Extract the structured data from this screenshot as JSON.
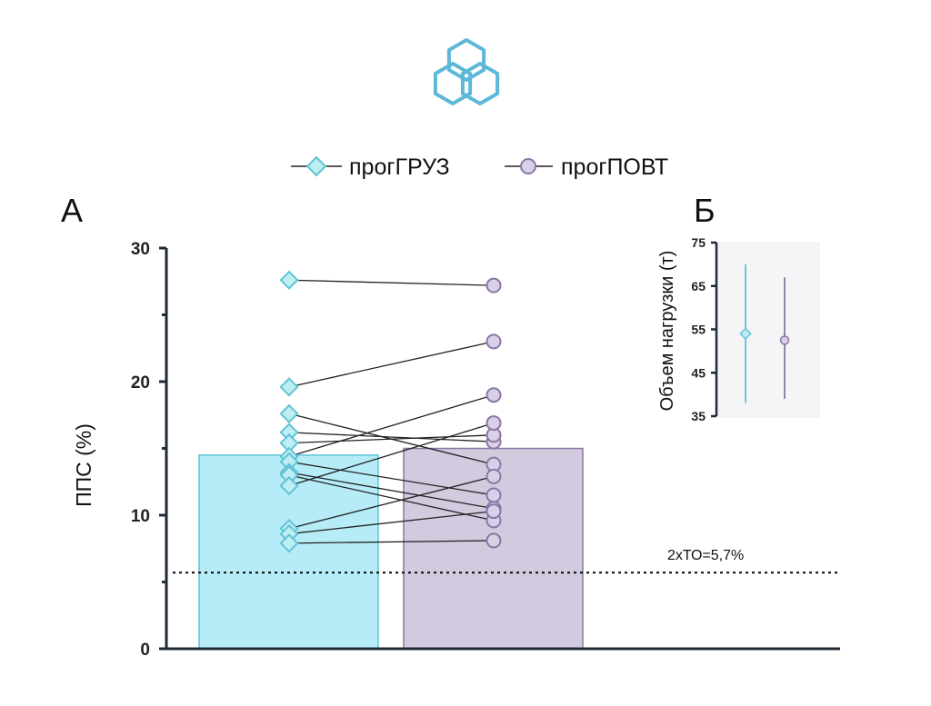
{
  "colors": {
    "load": "#62c3d6",
    "load_fill": "#b5ecf8",
    "load_marker": "#bdeef2",
    "reps": "#8b77a6",
    "reps_fill": "#d2cadf",
    "reps_marker": "#d8d0e6",
    "axis": "#1f2a37",
    "logo": "#5db8d8",
    "inset_bg": "#f5f5f7"
  },
  "logo_icon": "cube-cluster-logo-icon",
  "legend": [
    {
      "label": "прогГРУЗ",
      "marker": "diamond"
    },
    {
      "label": "прогПОВТ",
      "marker": "circle"
    }
  ],
  "chart_data": [
    {
      "panel": "А",
      "type": "bar",
      "ylabel": "ППС (%)",
      "ylim": [
        0,
        30
      ],
      "yticks": [
        0,
        10,
        20,
        30
      ],
      "categories": [
        "прогГРУЗ",
        "прогПОВТ"
      ],
      "values": [
        14.5,
        15.0
      ],
      "paired_points": [
        [
          27.6,
          27.2
        ],
        [
          19.6,
          23.0
        ],
        [
          17.6,
          13.8
        ],
        [
          16.2,
          15.5
        ],
        [
          15.4,
          16.0
        ],
        [
          14.4,
          19.0
        ],
        [
          14.0,
          11.5
        ],
        [
          13.2,
          10.5
        ],
        [
          13.0,
          9.6
        ],
        [
          12.2,
          16.9
        ],
        [
          9.0,
          12.9
        ],
        [
          8.6,
          10.3
        ],
        [
          7.9,
          8.1
        ]
      ],
      "reference_line": {
        "value": 5.7,
        "label": "2хТО=5,7%",
        "style": "dotted"
      }
    },
    {
      "panel": "Б",
      "type": "scatter",
      "ylabel": "Объем нагрузки (т)",
      "ylim": [
        35,
        75
      ],
      "yticks": [
        35,
        45,
        55,
        65,
        75
      ],
      "series": [
        {
          "name": "прогГРУЗ",
          "mean": 54,
          "low": 38,
          "high": 70
        },
        {
          "name": "прогПОВТ",
          "mean": 52.5,
          "low": 39,
          "high": 67
        }
      ]
    }
  ]
}
